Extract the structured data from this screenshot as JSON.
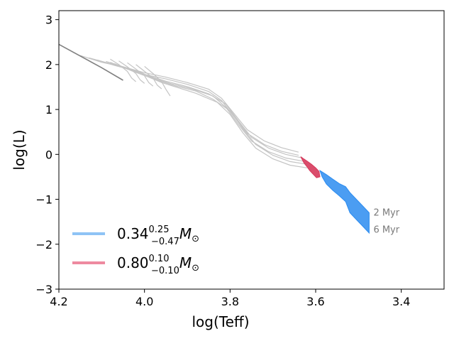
{
  "chart_data": {
    "type": "line",
    "xlabel": "log(Teff)",
    "ylabel": "log(L)",
    "xlim": [
      4.2,
      3.3
    ],
    "ylim": [
      -3,
      3.2
    ],
    "x_inverted": true,
    "xticks": [
      "4.2",
      "4.0",
      "3.8",
      "3.6",
      "3.4"
    ],
    "yticks": [
      "3",
      "2",
      "1",
      "0",
      "−1",
      "−2",
      "−3"
    ],
    "grid": false,
    "legend_position": "bottom-left",
    "colors": {
      "tracks": "#c4c4c4",
      "birthline": "#808080",
      "blue": "#2b8cf0",
      "blue_legend": "#8ec3f5",
      "red": "#d63a5c",
      "red_legend": "#ee8aa0",
      "annotation": "#7a7a7a"
    },
    "birthline": {
      "x": [
        4.2,
        4.1,
        4.05
      ],
      "y": [
        2.45,
        1.93,
        1.65
      ]
    },
    "tracks": [
      {
        "x": [
          4.15,
          4.1,
          4.05,
          4.0,
          3.95,
          3.9,
          3.85,
          3.82,
          3.79,
          3.76,
          3.72,
          3.68,
          3.64
        ],
        "y": [
          2.2,
          2.05,
          1.95,
          1.82,
          1.72,
          1.6,
          1.45,
          1.25,
          0.9,
          0.55,
          0.3,
          0.15,
          0.05
        ]
      },
      {
        "x": [
          4.13,
          4.08,
          4.04,
          4.0,
          3.95,
          3.9,
          3.85,
          3.82,
          3.79,
          3.76,
          3.72,
          3.68,
          3.64
        ],
        "y": [
          2.15,
          2.02,
          1.92,
          1.78,
          1.68,
          1.56,
          1.4,
          1.2,
          0.83,
          0.47,
          0.22,
          0.07,
          -0.02
        ]
      },
      {
        "x": [
          4.11,
          4.07,
          4.03,
          3.99,
          3.95,
          3.9,
          3.85,
          3.81,
          3.78,
          3.75,
          3.71,
          3.67,
          3.63
        ],
        "y": [
          2.1,
          1.98,
          1.88,
          1.75,
          1.63,
          1.51,
          1.35,
          1.12,
          0.74,
          0.38,
          0.14,
          0.0,
          -0.08
        ]
      },
      {
        "x": [
          4.09,
          4.05,
          4.01,
          3.98,
          3.94,
          3.89,
          3.84,
          3.81,
          3.78,
          3.75,
          3.71,
          3.67,
          3.63
        ],
        "y": [
          2.07,
          1.95,
          1.83,
          1.7,
          1.58,
          1.46,
          1.3,
          1.05,
          0.66,
          0.3,
          0.06,
          -0.08,
          -0.15
        ]
      },
      {
        "x": [
          4.08,
          4.04,
          4.0,
          3.97,
          3.93,
          3.88,
          3.84,
          3.8,
          3.77,
          3.74,
          3.7,
          3.66,
          3.62
        ],
        "y": [
          2.05,
          1.9,
          1.78,
          1.65,
          1.53,
          1.41,
          1.23,
          0.97,
          0.57,
          0.22,
          -0.02,
          -0.16,
          -0.22
        ]
      },
      {
        "x": [
          4.07,
          4.03,
          3.99,
          3.96,
          3.92,
          3.88,
          3.83,
          3.8,
          3.77,
          3.74,
          3.7,
          3.66,
          3.62
        ],
        "y": [
          2.02,
          1.86,
          1.72,
          1.6,
          1.48,
          1.36,
          1.16,
          0.89,
          0.48,
          0.14,
          -0.1,
          -0.24,
          -0.3
        ]
      }
    ],
    "loops": [
      {
        "x": [
          4.08,
          4.06,
          4.04,
          4.03,
          4.02
        ],
        "y": [
          2.12,
          2.0,
          1.85,
          1.7,
          1.62
        ]
      },
      {
        "x": [
          4.06,
          4.04,
          4.02,
          4.01,
          4.0
        ],
        "y": [
          2.08,
          1.95,
          1.8,
          1.66,
          1.58
        ]
      },
      {
        "x": [
          4.04,
          4.02,
          4.0,
          3.99,
          3.98
        ],
        "y": [
          2.04,
          1.9,
          1.75,
          1.6,
          1.52
        ]
      },
      {
        "x": [
          4.02,
          4.0,
          3.98,
          3.97,
          3.96
        ],
        "y": [
          2.0,
          1.85,
          1.7,
          1.54,
          1.46
        ]
      },
      {
        "x": [
          4.0,
          3.98,
          3.96,
          3.95,
          3.94
        ],
        "y": [
          1.96,
          1.8,
          1.62,
          1.45,
          1.3
        ]
      }
    ],
    "red_region": {
      "x": [
        3.635,
        3.628,
        3.62,
        3.61,
        3.6,
        3.592,
        3.59,
        3.598,
        3.606,
        3.614,
        3.62,
        3.628
      ],
      "y": [
        -0.05,
        -0.1,
        -0.15,
        -0.22,
        -0.3,
        -0.38,
        -0.5,
        -0.52,
        -0.44,
        -0.36,
        -0.28,
        -0.18
      ]
    },
    "blue_region": {
      "x": [
        3.59,
        3.575,
        3.56,
        3.545,
        3.53,
        3.52,
        3.505,
        3.49,
        3.475,
        3.475,
        3.49,
        3.505,
        3.52,
        3.53,
        3.545,
        3.56,
        3.575,
        3.585
      ],
      "y": [
        -0.36,
        -0.45,
        -0.55,
        -0.65,
        -0.72,
        -0.85,
        -1.0,
        -1.15,
        -1.3,
        -1.75,
        -1.6,
        -1.45,
        -1.3,
        -1.05,
        -0.92,
        -0.8,
        -0.66,
        -0.5
      ]
    },
    "annotations": [
      {
        "text": "2 Myr",
        "x": 3.465,
        "y": -1.3
      },
      {
        "text": "6 Myr",
        "x": 3.465,
        "y": -1.68
      }
    ],
    "legend": [
      {
        "prefix": "0.34",
        "sup": "0.25",
        "sub": "−0.47",
        "unit": "M",
        "sun": "⊙",
        "color_key": "blue_legend"
      },
      {
        "prefix": "0.80",
        "sup": "0.10",
        "sub": "−0.10",
        "unit": "M",
        "sun": "⊙",
        "color_key": "red_legend"
      }
    ]
  }
}
